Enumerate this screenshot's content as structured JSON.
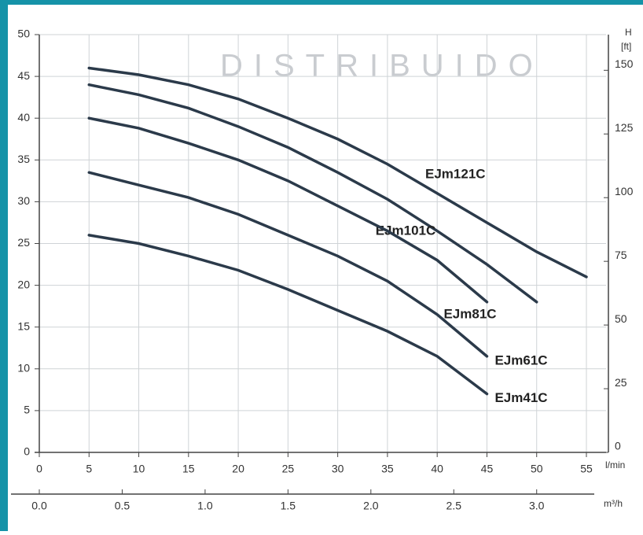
{
  "chart_data": {
    "type": "line",
    "watermark": "DISTRIBUIDO",
    "x": [
      5,
      10,
      15,
      20,
      25,
      30,
      35,
      40,
      45,
      50,
      55
    ],
    "xlim": [
      0,
      55
    ],
    "xticks": [
      0,
      5,
      10,
      15,
      20,
      25,
      30,
      35,
      40,
      45,
      50,
      55
    ],
    "xlabel": "l/min",
    "x2lim": [
      0,
      3.3
    ],
    "x2ticks": [
      {
        "value": 0,
        "label": "0.0"
      },
      0.5,
      {
        "value": 1,
        "label": "1.0"
      },
      1.5,
      {
        "value": 2,
        "label": "2.0"
      },
      2.5,
      {
        "value": 3,
        "label": "3.0"
      }
    ],
    "x2label": "m³/h",
    "ylim": [
      0,
      50
    ],
    "yticks": [
      0,
      5,
      10,
      15,
      20,
      25,
      30,
      35,
      40,
      45,
      50
    ],
    "y2lim": [
      0,
      164
    ],
    "y2ticks": [
      0,
      25,
      50,
      75,
      100,
      125,
      150
    ],
    "y2label": "H",
    "y2unit": "[ft]",
    "grid": true,
    "series": [
      {
        "name": "EJm121C",
        "color": "#2b3a4a",
        "values": [
          46,
          45.2,
          44,
          42.3,
          40,
          37.5,
          34.5,
          31,
          27.5,
          24,
          21
        ]
      },
      {
        "name": "EJm101C",
        "color": "#2b3a4a",
        "values": [
          44,
          42.8,
          41.2,
          39,
          36.5,
          33.5,
          30.3,
          26.5,
          22.5,
          18,
          null
        ]
      },
      {
        "name": "EJm81C",
        "color": "#2b3a4a",
        "values": [
          40,
          38.8,
          37,
          35,
          32.5,
          29.5,
          26.5,
          23,
          18,
          null,
          null
        ]
      },
      {
        "name": "EJm61C",
        "color": "#2b3a4a",
        "values": [
          33.5,
          32,
          30.5,
          28.5,
          26,
          23.5,
          20.5,
          16.5,
          11.5,
          null,
          null
        ]
      },
      {
        "name": "EJm41C",
        "color": "#2b3a4a",
        "values": [
          26,
          25,
          23.5,
          21.8,
          19.5,
          17,
          14.5,
          11.5,
          7,
          null,
          null
        ]
      }
    ]
  }
}
